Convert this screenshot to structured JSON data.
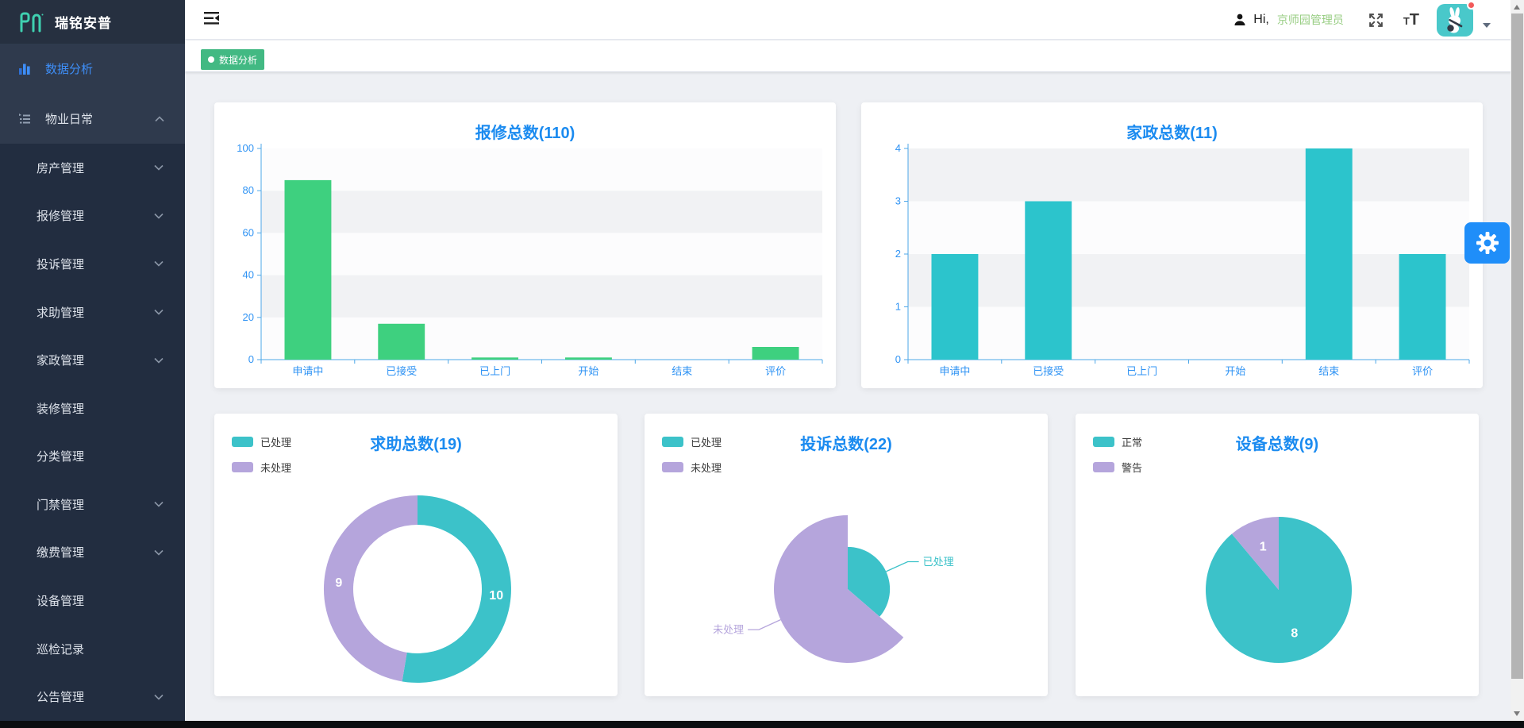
{
  "app": {
    "logo_text": "瑞铭安普"
  },
  "header": {
    "greeting": "Hi,",
    "username": "京师园管理员"
  },
  "tabbar": {
    "tabs": [
      {
        "label": "数据分析",
        "active": true
      }
    ]
  },
  "sidebar": {
    "items": [
      {
        "label": "数据分析",
        "active": true
      },
      {
        "label": "物业日常",
        "expanded": true
      }
    ],
    "subitems": [
      {
        "label": "房产管理",
        "has_children": true
      },
      {
        "label": "报修管理",
        "has_children": true
      },
      {
        "label": "投诉管理",
        "has_children": true
      },
      {
        "label": "求助管理",
        "has_children": true
      },
      {
        "label": "家政管理",
        "has_children": true
      },
      {
        "label": "装修管理",
        "has_children": false
      },
      {
        "label": "分类管理",
        "has_children": false
      },
      {
        "label": "门禁管理",
        "has_children": true
      },
      {
        "label": "缴费管理",
        "has_children": true
      },
      {
        "label": "设备管理",
        "has_children": false
      },
      {
        "label": "巡检记录",
        "has_children": false
      },
      {
        "label": "公告管理",
        "has_children": true
      }
    ]
  },
  "colors": {
    "accent_blue": "#1b8bf0",
    "axis_blue": "#2f93f4",
    "bar_green": "#3ed07f",
    "bar_teal": "#2cc4cc",
    "pie_teal": "#3cc2c9",
    "pie_purple": "#b5a5dc",
    "tag_green": "#42b983",
    "username_green": "#97cd82",
    "gear_blue": "#1f8ef9"
  },
  "chart_data": [
    {
      "type": "bar",
      "title": "报修总数(110)",
      "categories": [
        "申请中",
        "已接受",
        "已上门",
        "开始",
        "结束",
        "评价"
      ],
      "values": [
        85,
        17,
        1,
        1,
        0,
        6
      ],
      "ylim": [
        0,
        100
      ],
      "ytick_step": 20,
      "color": "#3ed07f",
      "grid": "split-bands",
      "legend_position": "none"
    },
    {
      "type": "bar",
      "title": "家政总数(11)",
      "categories": [
        "申请中",
        "已接受",
        "已上门",
        "开始",
        "结束",
        "评价"
      ],
      "values": [
        2,
        3,
        0,
        0,
        4,
        2
      ],
      "ylim": [
        0,
        4
      ],
      "ytick_step": 1,
      "color": "#2cc4cc",
      "grid": "split-bands",
      "legend_position": "none"
    },
    {
      "type": "donut",
      "title": "求助总数(19)",
      "legend": [
        "已处理",
        "未处理"
      ],
      "values": [
        10,
        9
      ],
      "labels": [
        "10",
        "9"
      ],
      "colors": [
        "#3cc2c9",
        "#b5a5dc"
      ],
      "legend_position": "top-left"
    },
    {
      "type": "rose",
      "title": "投诉总数(22)",
      "legend": [
        "已处理",
        "未处理"
      ],
      "values": [
        8,
        14
      ],
      "colors": [
        "#3cc2c9",
        "#b5a5dc"
      ],
      "legend_position": "top-left",
      "callout_labels": [
        "已处理",
        "未处理"
      ]
    },
    {
      "type": "pie",
      "title": "设备总数(9)",
      "legend": [
        "正常",
        "警告"
      ],
      "values": [
        8,
        1
      ],
      "labels": [
        "8",
        "1"
      ],
      "colors": [
        "#3cc2c9",
        "#b5a5dc"
      ],
      "legend_position": "top-left"
    }
  ]
}
